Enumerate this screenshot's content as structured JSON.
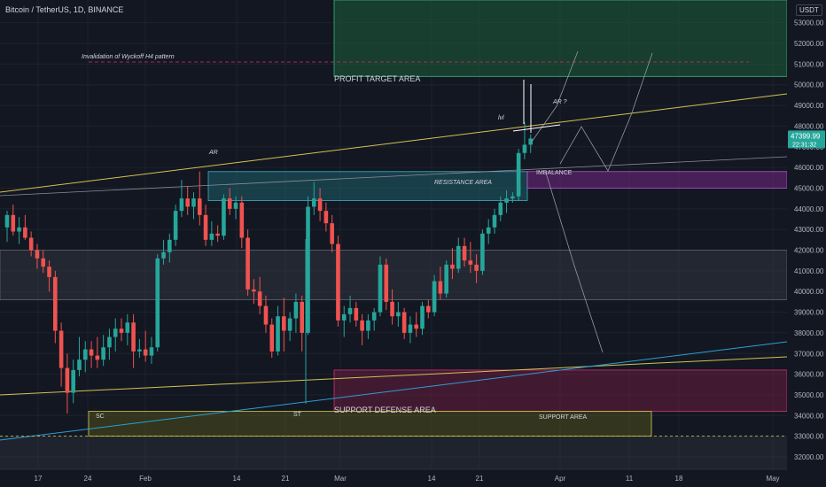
{
  "title": "Bitcoin / TetherUS, 1D, BINANCE",
  "currency": "USDT",
  "colors": {
    "background": "#131722",
    "up": "#26a69a",
    "down": "#ef5350",
    "grid": "#1e222d",
    "axis_text": "#b2b5be",
    "trendline": "#d4c24f",
    "blue_line": "#2c9fd6",
    "profit_zone": "#1b5e3a",
    "resistance_zone": "#1f6f7a",
    "imbalance_zone": "#7a2a8a",
    "support_defense_zone": "#7a1f45",
    "support_zone": "#5a5a1a",
    "gray_zone": "#434651",
    "price_badge": "#26a69a"
  },
  "annotations": {
    "invalidation": "Invalidation of Wyckoff H4 pattern",
    "profit_target": "PROFIT TARGET AREA",
    "resistance": "RESISTANCE AREA",
    "imbalance": "IMBALANCE",
    "support_defense": "SUPPORT DEFENSE AREA",
    "support": "SUPPORT AREA",
    "ar": "AR",
    "ar_q": "AR ?",
    "lvl": "lvl",
    "sc": "SC",
    "st": "ST"
  },
  "price_badge": {
    "price": "47399.99",
    "countdown": "22:31:32"
  },
  "chart_data": {
    "type": "candlestick",
    "ylim": [
      31400,
      54100
    ],
    "y_ticks": [
      "53000.00",
      "52000.00",
      "51000.00",
      "50000.00",
      "49000.00",
      "48000.00",
      "47000.00",
      "46000.00",
      "45000.00",
      "44000.00",
      "43000.00",
      "42000.00",
      "41000.00",
      "40000.00",
      "39000.00",
      "38000.00",
      "37000.00",
      "36000.00",
      "35000.00",
      "34000.00",
      "33000.00",
      "32000.00"
    ],
    "x_ticks": [
      "17",
      "24",
      "Feb",
      "14",
      "21",
      "Mar",
      "14",
      "21",
      "Apr",
      "11",
      "18",
      "May"
    ],
    "candles": [
      {
        "o": 43100,
        "h": 43900,
        "l": 42400,
        "c": 43700
      },
      {
        "o": 43700,
        "h": 44200,
        "l": 42700,
        "c": 42900
      },
      {
        "o": 42900,
        "h": 43600,
        "l": 42300,
        "c": 43100
      },
      {
        "o": 43100,
        "h": 43700,
        "l": 42500,
        "c": 42600
      },
      {
        "o": 42600,
        "h": 42900,
        "l": 41700,
        "c": 42000
      },
      {
        "o": 42000,
        "h": 42300,
        "l": 41100,
        "c": 41600
      },
      {
        "o": 41600,
        "h": 42000,
        "l": 40900,
        "c": 41200
      },
      {
        "o": 41200,
        "h": 41500,
        "l": 40000,
        "c": 40700
      },
      {
        "o": 40700,
        "h": 41000,
        "l": 37500,
        "c": 38100
      },
      {
        "o": 38100,
        "h": 38500,
        "l": 35400,
        "c": 36300
      },
      {
        "o": 36300,
        "h": 37000,
        "l": 34100,
        "c": 35100
      },
      {
        "o": 35100,
        "h": 36700,
        "l": 34600,
        "c": 36200
      },
      {
        "o": 36200,
        "h": 37800,
        "l": 35900,
        "c": 36700
      },
      {
        "o": 36700,
        "h": 37600,
        "l": 36100,
        "c": 37200
      },
      {
        "o": 37200,
        "h": 37600,
        "l": 36300,
        "c": 36900
      },
      {
        "o": 36900,
        "h": 37800,
        "l": 36300,
        "c": 36700
      },
      {
        "o": 36700,
        "h": 37900,
        "l": 36400,
        "c": 37300
      },
      {
        "o": 37300,
        "h": 38200,
        "l": 36700,
        "c": 37800
      },
      {
        "o": 37800,
        "h": 38700,
        "l": 37100,
        "c": 38200
      },
      {
        "o": 38200,
        "h": 38700,
        "l": 37600,
        "c": 38000
      },
      {
        "o": 38000,
        "h": 38900,
        "l": 37400,
        "c": 38500
      },
      {
        "o": 38500,
        "h": 38900,
        "l": 36300,
        "c": 37100
      },
      {
        "o": 37100,
        "h": 37700,
        "l": 36800,
        "c": 37200
      },
      {
        "o": 37200,
        "h": 38100,
        "l": 36600,
        "c": 36900
      },
      {
        "o": 36900,
        "h": 37800,
        "l": 36500,
        "c": 37300
      },
      {
        "o": 37300,
        "h": 41800,
        "l": 37100,
        "c": 41600
      },
      {
        "o": 41600,
        "h": 42500,
        "l": 41300,
        "c": 41900
      },
      {
        "o": 41900,
        "h": 42800,
        "l": 41400,
        "c": 42500
      },
      {
        "o": 42500,
        "h": 44200,
        "l": 42200,
        "c": 43900
      },
      {
        "o": 43900,
        "h": 45400,
        "l": 43600,
        "c": 44500
      },
      {
        "o": 44500,
        "h": 45100,
        "l": 43700,
        "c": 44100
      },
      {
        "o": 44100,
        "h": 44800,
        "l": 43500,
        "c": 44500
      },
      {
        "o": 44500,
        "h": 45800,
        "l": 43200,
        "c": 43700
      },
      {
        "o": 43700,
        "h": 44200,
        "l": 42200,
        "c": 42500
      },
      {
        "o": 42500,
        "h": 43400,
        "l": 42200,
        "c": 42800
      },
      {
        "o": 42800,
        "h": 43200,
        "l": 42400,
        "c": 42700
      },
      {
        "o": 42700,
        "h": 44700,
        "l": 42500,
        "c": 44500
      },
      {
        "o": 44500,
        "h": 45000,
        "l": 43700,
        "c": 44000
      },
      {
        "o": 44000,
        "h": 44600,
        "l": 43500,
        "c": 44300
      },
      {
        "o": 44300,
        "h": 44600,
        "l": 42100,
        "c": 42600
      },
      {
        "o": 42600,
        "h": 43000,
        "l": 39800,
        "c": 40100
      },
      {
        "o": 40100,
        "h": 40600,
        "l": 39400,
        "c": 40000
      },
      {
        "o": 40000,
        "h": 40700,
        "l": 38900,
        "c": 39300
      },
      {
        "o": 39300,
        "h": 39800,
        "l": 38000,
        "c": 38400
      },
      {
        "o": 38400,
        "h": 38700,
        "l": 36800,
        "c": 37100
      },
      {
        "o": 37100,
        "h": 39300,
        "l": 36900,
        "c": 38800
      },
      {
        "o": 38800,
        "h": 39700,
        "l": 37100,
        "c": 38100
      },
      {
        "o": 38100,
        "h": 39000,
        "l": 37600,
        "c": 38700
      },
      {
        "o": 38700,
        "h": 39900,
        "l": 38000,
        "c": 39500
      },
      {
        "o": 39500,
        "h": 39800,
        "l": 37100,
        "c": 38000
      },
      {
        "o": 38000,
        "h": 44600,
        "l": 37900,
        "c": 44100
      },
      {
        "o": 44100,
        "h": 45300,
        "l": 43700,
        "c": 44500
      },
      {
        "o": 44500,
        "h": 45000,
        "l": 43400,
        "c": 43900
      },
      {
        "o": 43900,
        "h": 44300,
        "l": 42900,
        "c": 43300
      },
      {
        "o": 43300,
        "h": 43700,
        "l": 41900,
        "c": 42300
      },
      {
        "o": 42300,
        "h": 42700,
        "l": 38300,
        "c": 38600
      },
      {
        "o": 38600,
        "h": 39300,
        "l": 37800,
        "c": 38900
      },
      {
        "o": 38900,
        "h": 39800,
        "l": 38500,
        "c": 39200
      },
      {
        "o": 39200,
        "h": 39500,
        "l": 38300,
        "c": 38600
      },
      {
        "o": 38600,
        "h": 38900,
        "l": 37400,
        "c": 38100
      },
      {
        "o": 38100,
        "h": 38900,
        "l": 37700,
        "c": 38600
      },
      {
        "o": 38600,
        "h": 39200,
        "l": 38100,
        "c": 39000
      },
      {
        "o": 39000,
        "h": 41700,
        "l": 38800,
        "c": 41300
      },
      {
        "o": 41300,
        "h": 41600,
        "l": 39100,
        "c": 39500
      },
      {
        "o": 39500,
        "h": 40100,
        "l": 38400,
        "c": 38800
      },
      {
        "o": 38800,
        "h": 39500,
        "l": 38300,
        "c": 39000
      },
      {
        "o": 39000,
        "h": 39200,
        "l": 37700,
        "c": 38000
      },
      {
        "o": 38000,
        "h": 38800,
        "l": 37500,
        "c": 38400
      },
      {
        "o": 38400,
        "h": 39000,
        "l": 37800,
        "c": 38200
      },
      {
        "o": 38200,
        "h": 39500,
        "l": 37900,
        "c": 39300
      },
      {
        "o": 39300,
        "h": 39600,
        "l": 38700,
        "c": 39000
      },
      {
        "o": 39000,
        "h": 40800,
        "l": 38800,
        "c": 40500
      },
      {
        "o": 40500,
        "h": 41200,
        "l": 39600,
        "c": 39900
      },
      {
        "o": 39900,
        "h": 41500,
        "l": 39700,
        "c": 41300
      },
      {
        "o": 41300,
        "h": 42100,
        "l": 40600,
        "c": 41100
      },
      {
        "o": 41100,
        "h": 42600,
        "l": 40900,
        "c": 42200
      },
      {
        "o": 42200,
        "h": 42600,
        "l": 41200,
        "c": 41500
      },
      {
        "o": 41500,
        "h": 42400,
        "l": 40900,
        "c": 41300
      },
      {
        "o": 41300,
        "h": 41800,
        "l": 40400,
        "c": 41000
      },
      {
        "o": 41000,
        "h": 43000,
        "l": 40800,
        "c": 42800
      },
      {
        "o": 42800,
        "h": 43500,
        "l": 42300,
        "c": 43100
      },
      {
        "o": 43100,
        "h": 44000,
        "l": 42800,
        "c": 43700
      },
      {
        "o": 43700,
        "h": 44600,
        "l": 43400,
        "c": 44300
      },
      {
        "o": 44300,
        "h": 44900,
        "l": 43800,
        "c": 44500
      },
      {
        "o": 44500,
        "h": 44800,
        "l": 44300,
        "c": 44600
      },
      {
        "o": 44600,
        "h": 46900,
        "l": 44400,
        "c": 46700
      },
      {
        "o": 46700,
        "h": 48200,
        "l": 46400,
        "c": 47100
      },
      {
        "o": 47100,
        "h": 47600,
        "l": 46700,
        "c": 47400
      }
    ]
  }
}
